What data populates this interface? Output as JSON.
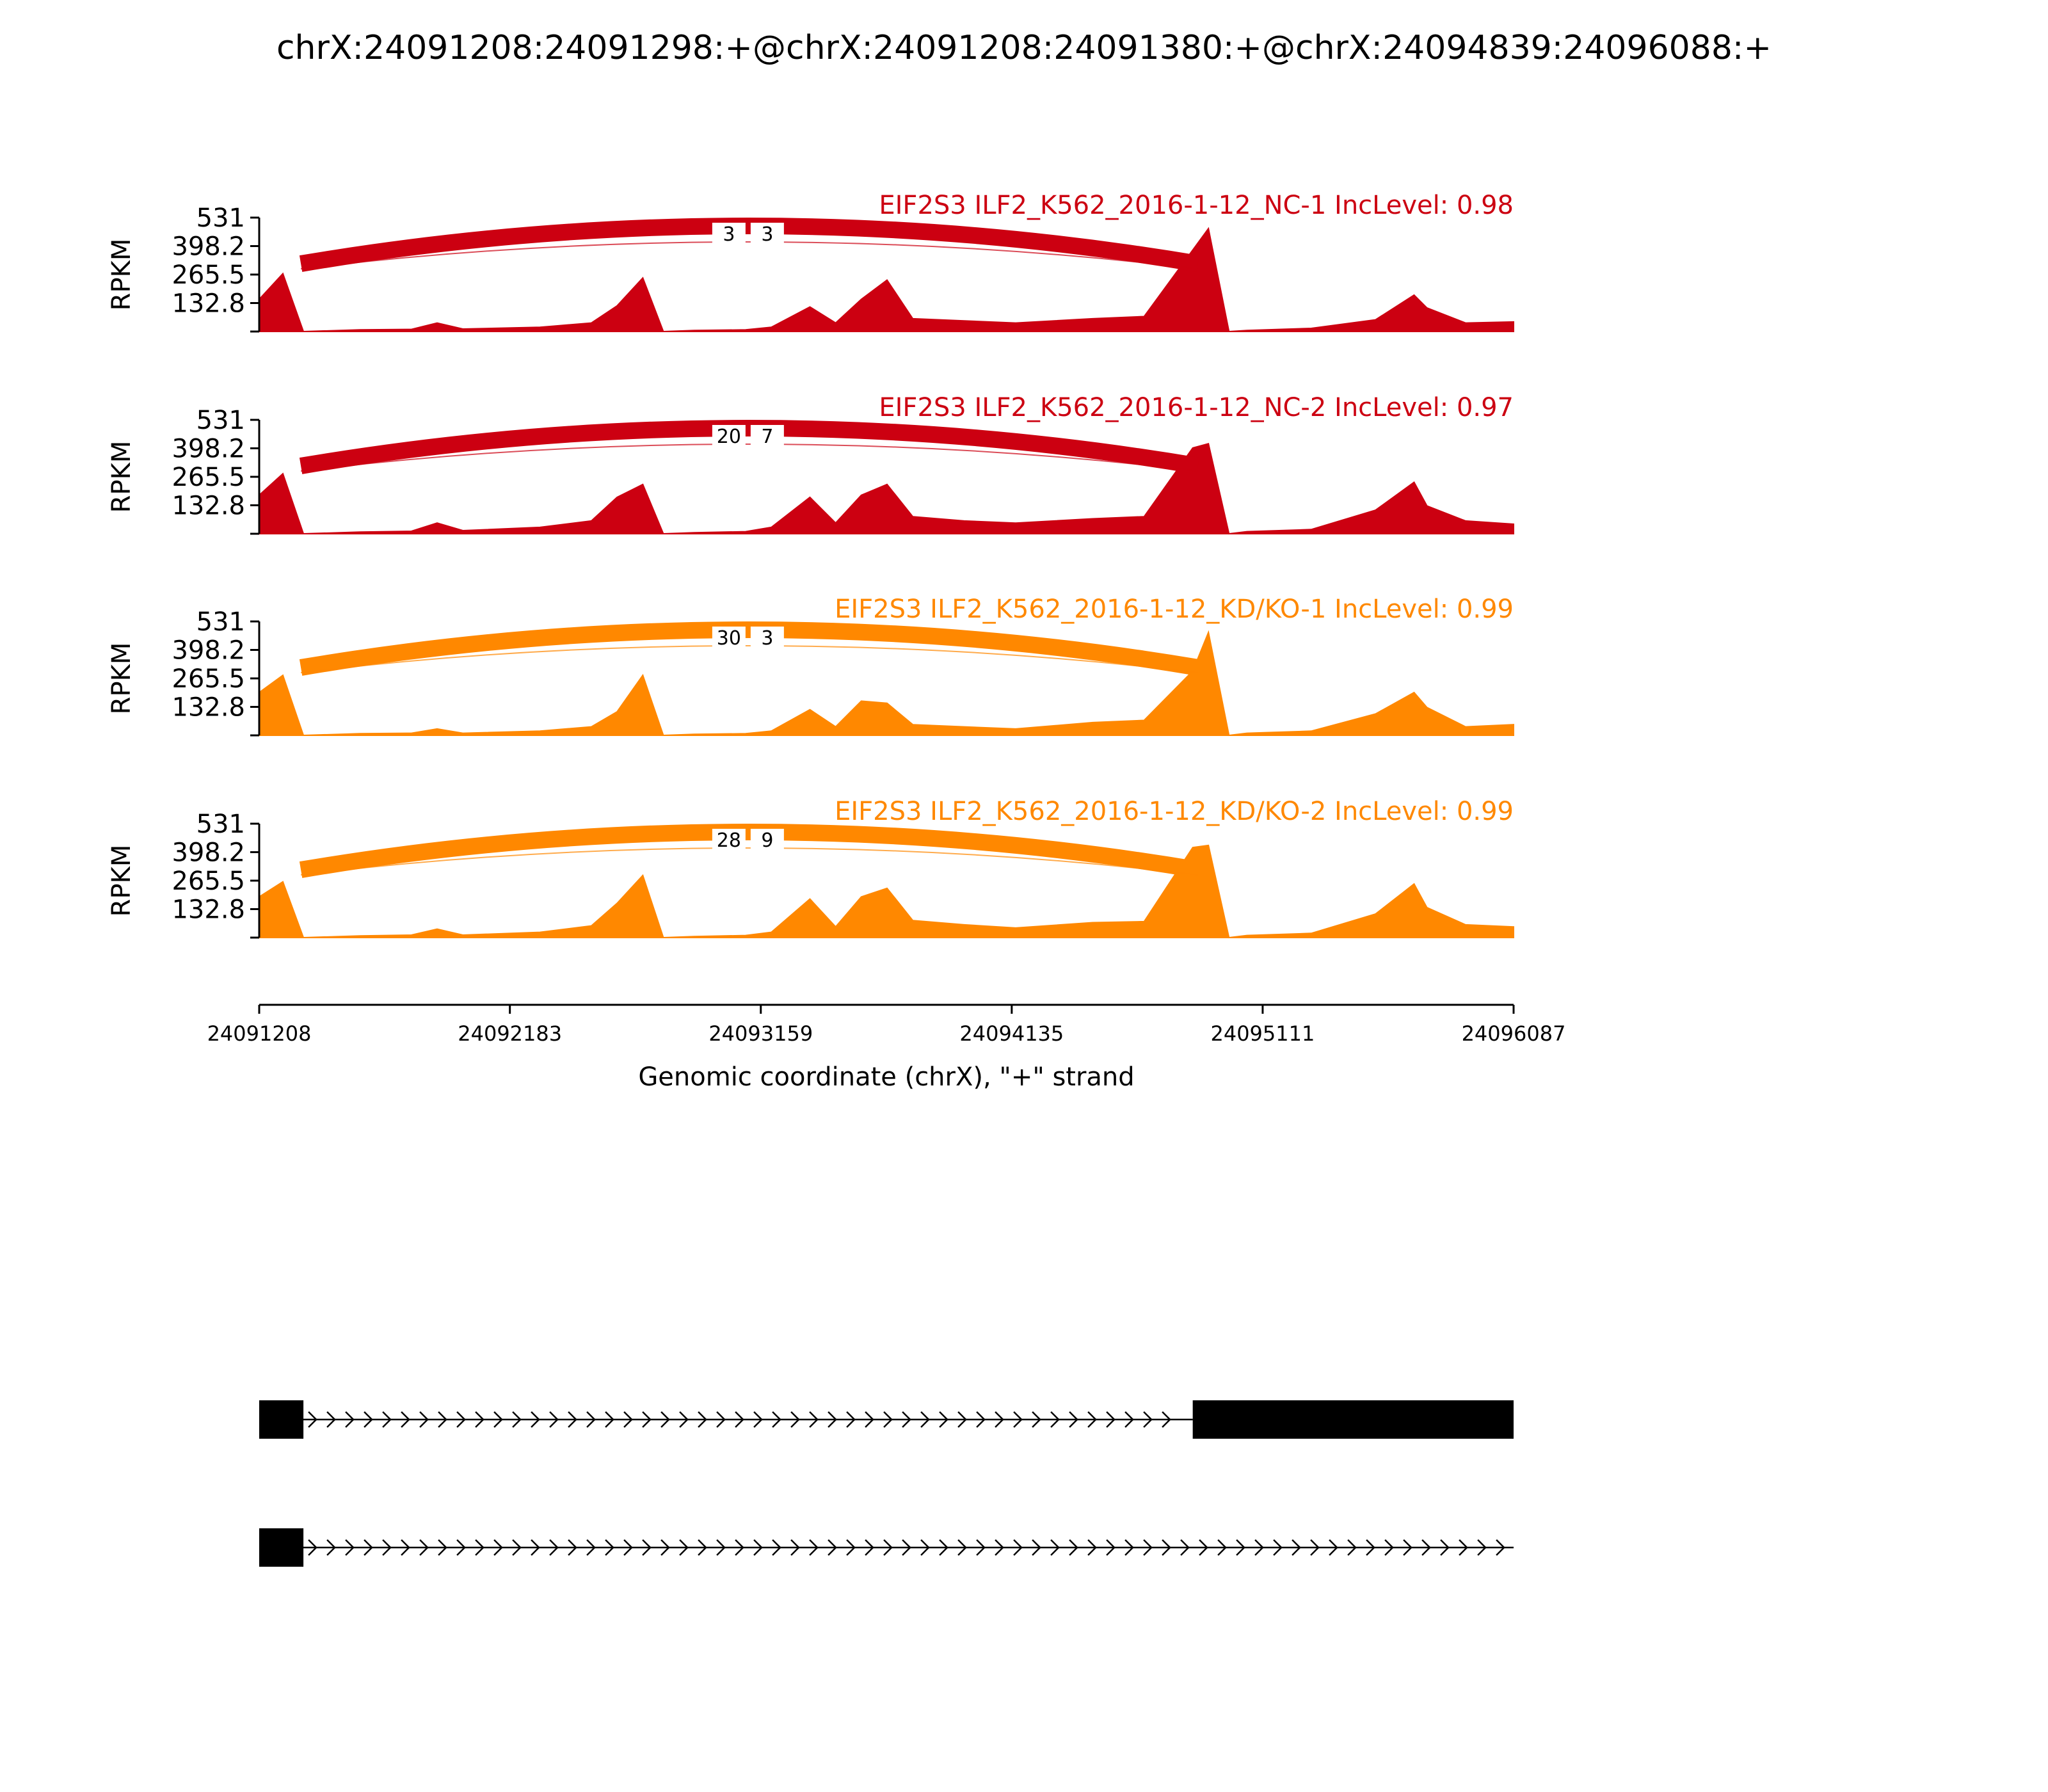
{
  "chart_data": {
    "type": "area",
    "title": "chrX:24091208:24091298:+@chrX:24091208:24091380:+@chrX:24094839:24096088:+",
    "xlabel": "Genomic coordinate (chrX), \"+\" strand",
    "ylabel": "RPKM",
    "xlim": [
      24091208,
      24096087
    ],
    "ylim": [
      0,
      531
    ],
    "x_ticks": [
      "24091208",
      "24092183",
      "24093159",
      "24094135",
      "24095111",
      "24096087"
    ],
    "y_ticks": [
      "531",
      "398.2",
      "265.5",
      "132.8"
    ],
    "x": [
      24091208,
      24091300,
      24091380,
      24091600,
      24091800,
      24091900,
      24092000,
      24092300,
      24092500,
      24092600,
      24092700,
      24092780,
      24092900,
      24093100,
      24093200,
      24093350,
      24093450,
      24093550,
      24093650,
      24093750,
      24093950,
      24094150,
      24094450,
      24094650,
      24094839,
      24094900,
      24094980,
      24095050,
      24095300,
      24095550,
      24095700,
      24095750,
      24095900,
      24096087
    ],
    "series": [
      {
        "name": "EIF2S3 ILF2_K562_2016-1-12_NC-1 IncLevel: 0.98",
        "color": "#cc0011",
        "values": [
          150,
          270,
          0,
          8,
          10,
          40,
          12,
          20,
          40,
          120,
          250,
          0,
          5,
          8,
          20,
          115,
          40,
          150,
          240,
          60,
          50,
          40,
          60,
          70,
          380,
          480,
          0,
          5,
          15,
          55,
          170,
          110,
          40,
          45
        ],
        "junctions": [
          {
            "label": "3",
            "inc": true
          },
          {
            "label": "3",
            "inc": false
          }
        ]
      },
      {
        "name": "EIF2S3 ILF2_K562_2016-1-12_NC-2 IncLevel: 0.97",
        "color": "#cc0011",
        "values": [
          180,
          280,
          0,
          8,
          12,
          50,
          15,
          30,
          60,
          170,
          230,
          0,
          5,
          10,
          30,
          170,
          50,
          180,
          230,
          80,
          60,
          50,
          70,
          80,
          400,
          420,
          0,
          10,
          20,
          110,
          240,
          130,
          60,
          45
        ],
        "junctions": [
          {
            "label": "20",
            "inc": true
          },
          {
            "label": "7",
            "inc": false
          }
        ]
      },
      {
        "name": "EIF2S3 ILF2_K562_2016-1-12_KD/KO-1 IncLevel: 0.99",
        "color": "#ff8800",
        "values": [
          200,
          280,
          0,
          8,
          10,
          30,
          10,
          20,
          40,
          110,
          280,
          0,
          5,
          8,
          20,
          120,
          40,
          160,
          150,
          50,
          40,
          30,
          60,
          70,
          300,
          480,
          0,
          10,
          20,
          100,
          200,
          130,
          40,
          50
        ],
        "junctions": [
          {
            "label": "30",
            "inc": true
          },
          {
            "label": "3",
            "inc": false
          }
        ]
      },
      {
        "name": "EIF2S3 ILF2_K562_2016-1-12_KD/KO-2 IncLevel: 0.99",
        "color": "#ff8800",
        "values": [
          190,
          260,
          0,
          8,
          12,
          40,
          12,
          25,
          55,
          160,
          290,
          0,
          5,
          10,
          25,
          180,
          50,
          190,
          230,
          80,
          60,
          45,
          70,
          75,
          420,
          430,
          0,
          10,
          20,
          110,
          250,
          140,
          60,
          50
        ],
        "junctions": [
          {
            "label": "28",
            "inc": true
          },
          {
            "label": "9",
            "inc": false
          }
        ]
      }
    ],
    "transcripts": [
      {
        "exons": [
          [
            24091208,
            24091380
          ],
          [
            24094839,
            24096087
          ]
        ]
      },
      {
        "exons": [
          [
            24091208,
            24091380
          ]
        ]
      }
    ]
  }
}
